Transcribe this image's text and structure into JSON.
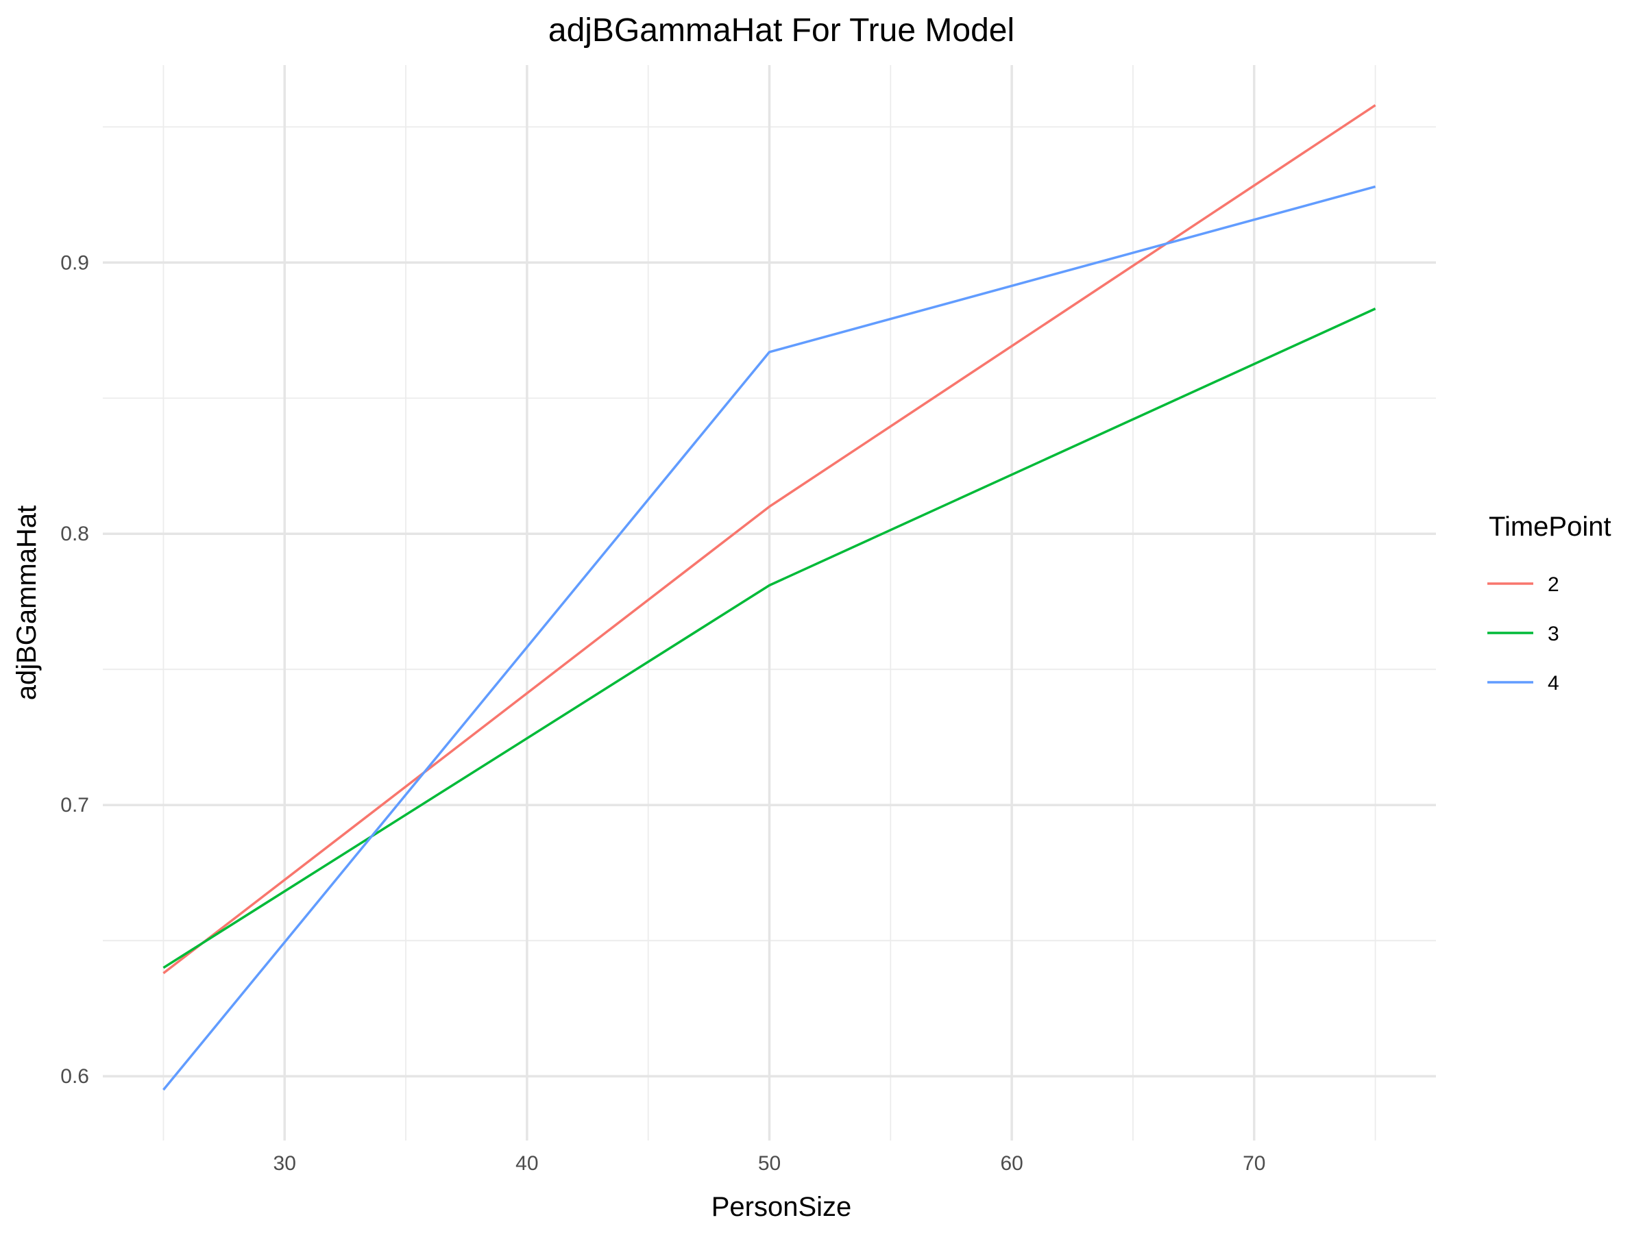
{
  "chart_data": {
    "type": "line",
    "title": "adjBGammaHat For True Model",
    "xlabel": "PersonSize",
    "ylabel": "adjBGammaHat",
    "x": [
      25,
      50,
      75
    ],
    "xlim": [
      22.5,
      77.5
    ],
    "ylim": [
      0.5763,
      0.9728
    ],
    "x_ticks": [
      30,
      40,
      50,
      60,
      70
    ],
    "y_ticks": [
      0.6,
      0.7,
      0.8,
      0.9
    ],
    "x_tick_labels": [
      "30",
      "40",
      "50",
      "60",
      "70"
    ],
    "y_tick_labels": [
      "0.6",
      "0.7",
      "0.8",
      "0.9"
    ],
    "grid": true,
    "legend": {
      "title": "TimePoint",
      "placement": "right"
    },
    "series": [
      {
        "name": "2",
        "color": "#F8766D",
        "values": [
          0.638,
          0.81,
          0.958
        ]
      },
      {
        "name": "3",
        "color": "#00BA38",
        "values": [
          0.64,
          0.781,
          0.883
        ]
      },
      {
        "name": "4",
        "color": "#619CFF",
        "values": [
          0.595,
          0.867,
          0.928
        ]
      }
    ]
  }
}
